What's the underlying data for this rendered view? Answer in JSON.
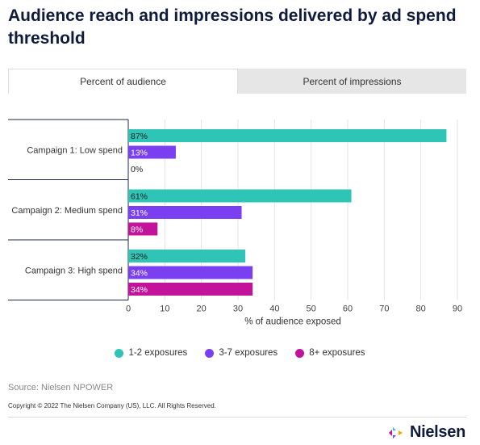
{
  "title": "Audience reach and impressions delivered by ad spend threshold",
  "tabs": [
    {
      "label": "Percent of audience",
      "active": true
    },
    {
      "label": "Percent of impressions",
      "active": false
    }
  ],
  "chart_data": {
    "type": "bar",
    "orientation": "horizontal",
    "categories": [
      "Campaign 1: Low spend",
      "Campaign 2: Medium spend",
      "Campaign 3: High spend"
    ],
    "series": [
      {
        "name": "1-2 exposures",
        "color": "#2ec4b6",
        "values": [
          87,
          61,
          32
        ]
      },
      {
        "name": "3-7 exposures",
        "color": "#7b3ff2",
        "values": [
          13,
          31,
          34
        ]
      },
      {
        "name": "8+ exposures",
        "color": "#c4139b",
        "values": [
          0,
          8,
          34
        ]
      }
    ],
    "data_labels": [
      [
        "87%",
        "13%",
        "0%"
      ],
      [
        "61%",
        "31%",
        "8%"
      ],
      [
        "32%",
        "34%",
        "34%"
      ]
    ],
    "xlabel": "% of audience exposed",
    "ylabel": "",
    "xlim": [
      0,
      90
    ],
    "xticks": [
      "0",
      "10",
      "20",
      "30",
      "40",
      "50",
      "60",
      "70",
      "80",
      "90"
    ],
    "grid": true,
    "legend_position": "bottom"
  },
  "source": "Source: Nielsen NPOWER",
  "copyright": "Copyright © 2022 The Nielsen Company (US), LLC. All Rights Reserved.",
  "logo": {
    "text": "Nielsen",
    "name": "nielsen-logo-icon"
  }
}
